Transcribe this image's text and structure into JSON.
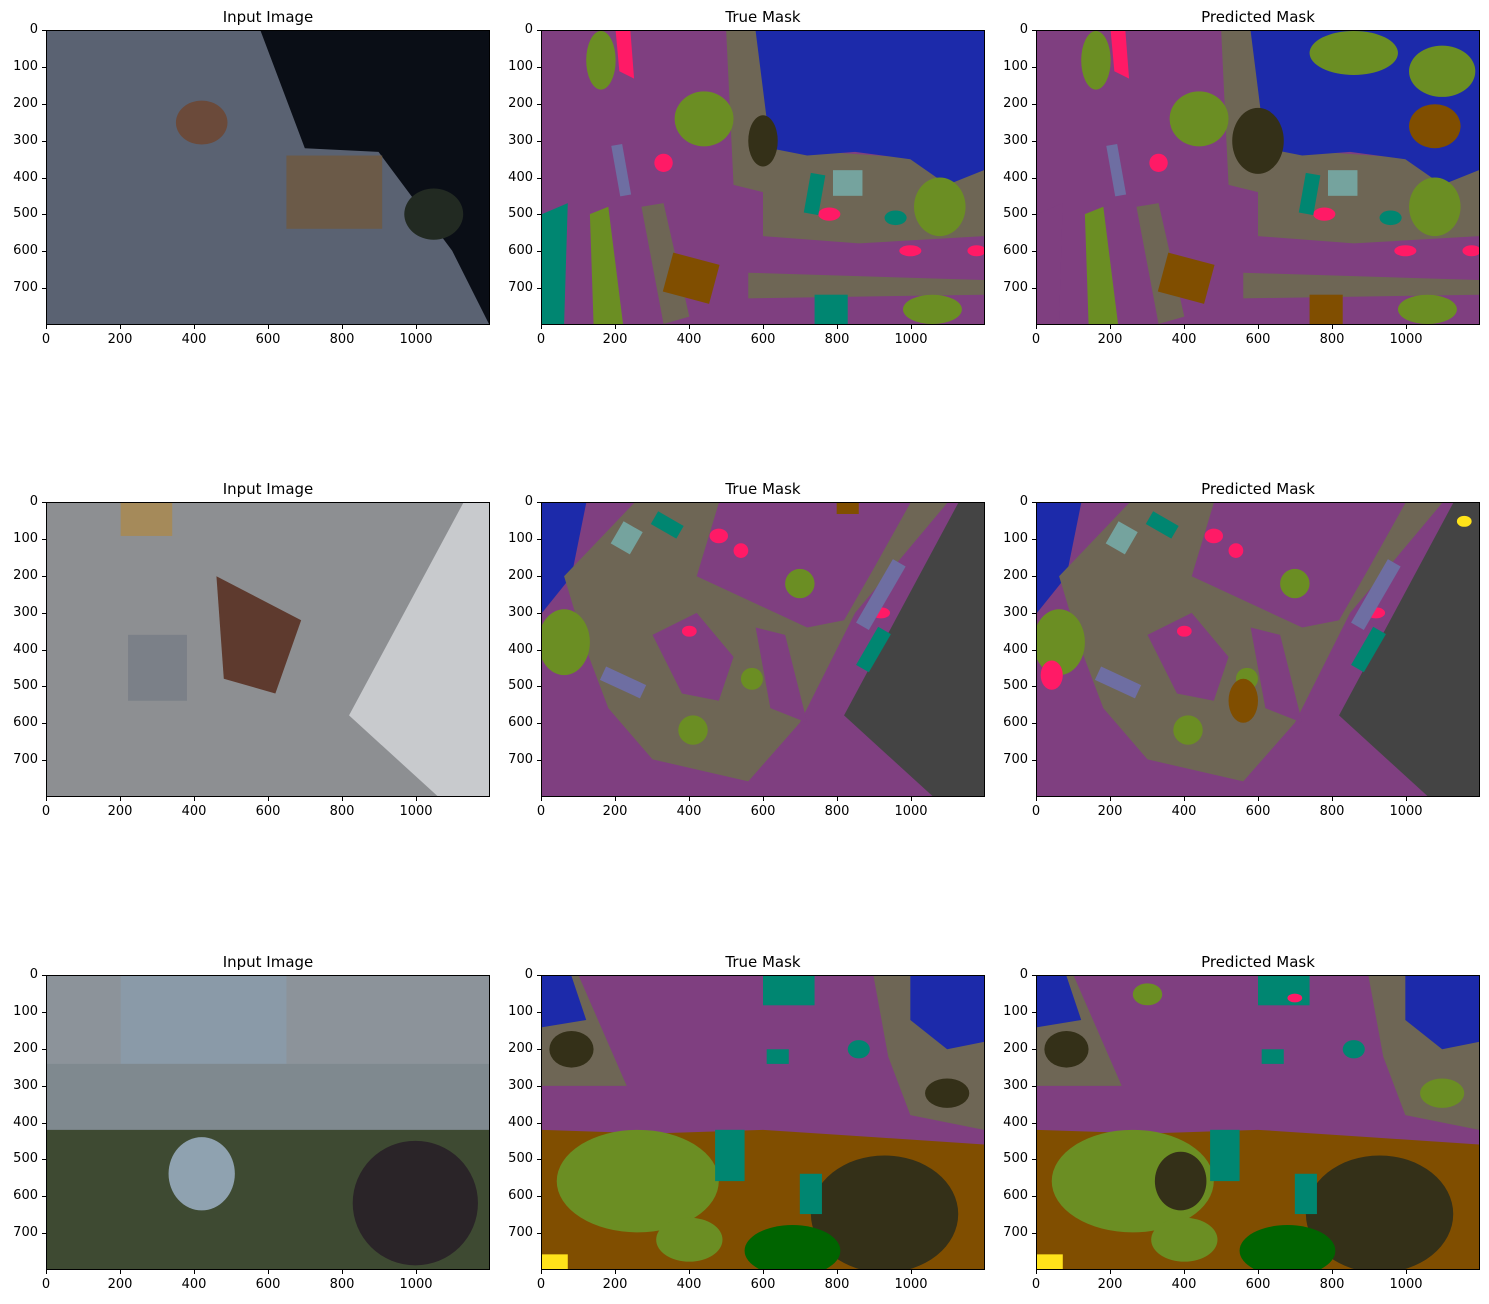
{
  "figure": {
    "rows": [
      {
        "panels": [
          {
            "title": "Input Image",
            "kind": "photo",
            "scene": "pond-patio"
          },
          {
            "title": "True Mask",
            "kind": "mask",
            "scene": "pond-patio"
          },
          {
            "title": "Predicted Mask",
            "kind": "mask",
            "scene": "pond-patio"
          }
        ]
      },
      {
        "panels": [
          {
            "title": "Input Image",
            "kind": "photo",
            "scene": "building-walk"
          },
          {
            "title": "True Mask",
            "kind": "mask",
            "scene": "building-walk"
          },
          {
            "title": "Predicted Mask",
            "kind": "mask",
            "scene": "building-walk"
          }
        ]
      },
      {
        "panels": [
          {
            "title": "Input Image",
            "kind": "photo",
            "scene": "garden-road"
          },
          {
            "title": "True Mask",
            "kind": "mask",
            "scene": "garden-road"
          },
          {
            "title": "Predicted Mask",
            "kind": "mask",
            "scene": "garden-road"
          }
        ]
      }
    ],
    "y_ticks": [
      "0",
      "100",
      "200",
      "300",
      "400",
      "500",
      "600",
      "700"
    ],
    "x_ticks": [
      "0",
      "200",
      "400",
      "600",
      "800",
      "1000"
    ],
    "y_tick_values": [
      0,
      100,
      200,
      300,
      400,
      500,
      600,
      700
    ],
    "x_tick_values": [
      0,
      200,
      400,
      600,
      800,
      1000
    ],
    "image_width": 1200,
    "image_height": 800
  },
  "colors": {
    "paved": "#7f3f80",
    "dirt": "#6e6655",
    "grass_vegetation": "#6b8e23",
    "tree": "#343018",
    "water": "#1c2aaa",
    "rocks": "#7f6f60",
    "person": "#ff1a66",
    "obstacle": "#008671",
    "wall_building": "#444444",
    "fence": "#6e6ea2",
    "gravel": "#804e00",
    "roof": "#75a39e",
    "dark_green": "#006400",
    "yellow": "#ffe31a"
  }
}
